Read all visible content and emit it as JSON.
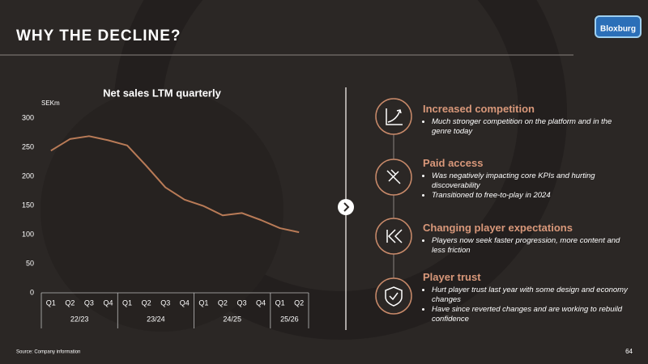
{
  "slide": {
    "title": "WHY THE DECLINE?",
    "logo": "Bloxburg",
    "source": "Source: Company information",
    "page_number": "64"
  },
  "chart_data": {
    "type": "line",
    "title": "Net sales LTM quarterly",
    "y_label": "SEKm",
    "color": "#b97b57",
    "groups": [
      {
        "label": "22/23",
        "categories": [
          "Q1",
          "Q2",
          "Q3",
          "Q4"
        ]
      },
      {
        "label": "23/24",
        "categories": [
          "Q1",
          "Q2",
          "Q3",
          "Q4"
        ]
      },
      {
        "label": "24/25",
        "categories": [
          "Q1",
          "Q2",
          "Q3",
          "Q4"
        ]
      },
      {
        "label": "25/26",
        "categories": [
          "Q1",
          "Q2"
        ]
      }
    ],
    "values": [
      244,
      264,
      269,
      262,
      253,
      218,
      181,
      160,
      149,
      133,
      137,
      125,
      111,
      104
    ],
    "ylim": [
      0,
      300
    ],
    "yticks": [
      0,
      50,
      100,
      150,
      200,
      250,
      300
    ],
    "grid": false
  },
  "items": [
    {
      "title": "Increased competition",
      "bullets": [
        "Much stronger competition on the platform and in the genre today"
      ]
    },
    {
      "title": "Paid access",
      "bullets": [
        "Was negatively impacting core KPIs and hurting discoverability",
        "Transitioned to free-to-play in 2024"
      ]
    },
    {
      "title": "Changing player expectations",
      "bullets": [
        "Players now seek faster progression, more content and less friction"
      ]
    },
    {
      "title": "Player trust",
      "bullets": [
        "Hurt player trust last year with some design and economy changes",
        "Have since reverted changes and are working to rebuild confidence"
      ]
    }
  ]
}
